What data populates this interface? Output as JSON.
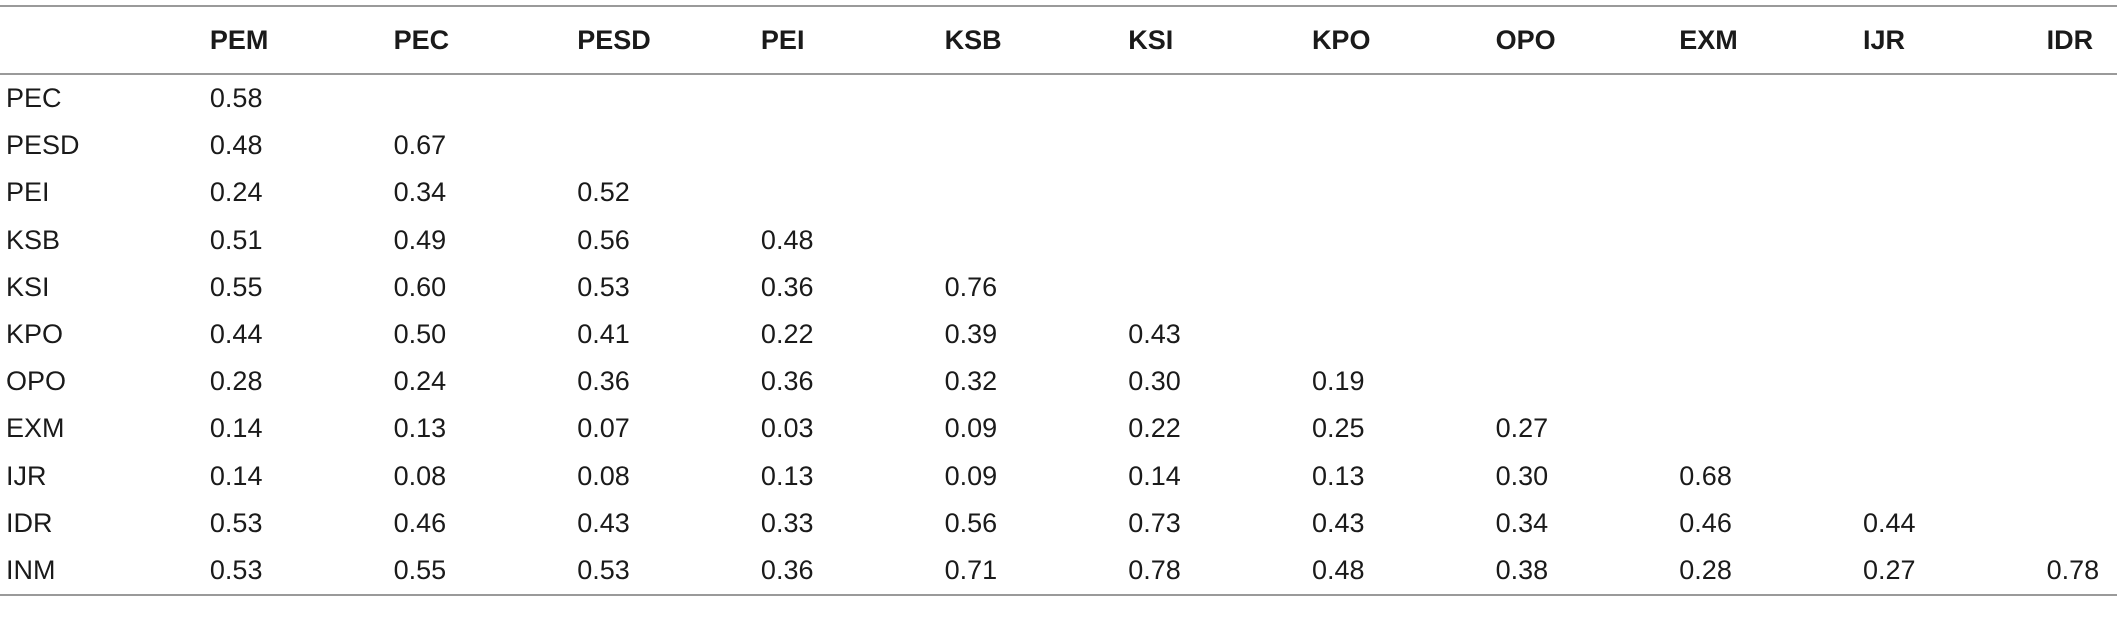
{
  "table": {
    "columns": [
      "",
      "PEM",
      "PEC",
      "PESD",
      "PEI",
      "KSB",
      "KSI",
      "KPO",
      "OPO",
      "EXM",
      "IJR",
      "IDR"
    ],
    "rows": [
      {
        "label": "PEC",
        "values": [
          "0.58",
          "",
          "",
          "",
          "",
          "",
          "",
          "",
          "",
          "",
          ""
        ]
      },
      {
        "label": "PESD",
        "values": [
          "0.48",
          "0.67",
          "",
          "",
          "",
          "",
          "",
          "",
          "",
          "",
          ""
        ]
      },
      {
        "label": "PEI",
        "values": [
          "0.24",
          "0.34",
          "0.52",
          "",
          "",
          "",
          "",
          "",
          "",
          "",
          ""
        ]
      },
      {
        "label": "KSB",
        "values": [
          "0.51",
          "0.49",
          "0.56",
          "0.48",
          "",
          "",
          "",
          "",
          "",
          "",
          ""
        ]
      },
      {
        "label": "KSI",
        "values": [
          "0.55",
          "0.60",
          "0.53",
          "0.36",
          "0.76",
          "",
          "",
          "",
          "",
          "",
          ""
        ]
      },
      {
        "label": "KPO",
        "values": [
          "0.44",
          "0.50",
          "0.41",
          "0.22",
          "0.39",
          "0.43",
          "",
          "",
          "",
          "",
          ""
        ]
      },
      {
        "label": "OPO",
        "values": [
          "0.28",
          "0.24",
          "0.36",
          "0.36",
          "0.32",
          "0.30",
          "0.19",
          "",
          "",
          "",
          ""
        ]
      },
      {
        "label": "EXM",
        "values": [
          "0.14",
          "0.13",
          "0.07",
          "0.03",
          "0.09",
          "0.22",
          "0.25",
          "0.27",
          "",
          "",
          ""
        ]
      },
      {
        "label": "IJR",
        "values": [
          "0.14",
          "0.08",
          "0.08",
          "0.13",
          "0.09",
          "0.14",
          "0.13",
          "0.30",
          "0.68",
          "",
          ""
        ]
      },
      {
        "label": "IDR",
        "values": [
          "0.53",
          "0.46",
          "0.43",
          "0.33",
          "0.56",
          "0.73",
          "0.43",
          "0.34",
          "0.46",
          "0.44",
          ""
        ]
      },
      {
        "label": "INM",
        "values": [
          "0.53",
          "0.55",
          "0.53",
          "0.36",
          "0.71",
          "0.78",
          "0.48",
          "0.38",
          "0.28",
          "0.27",
          "0.78"
        ]
      }
    ]
  }
}
